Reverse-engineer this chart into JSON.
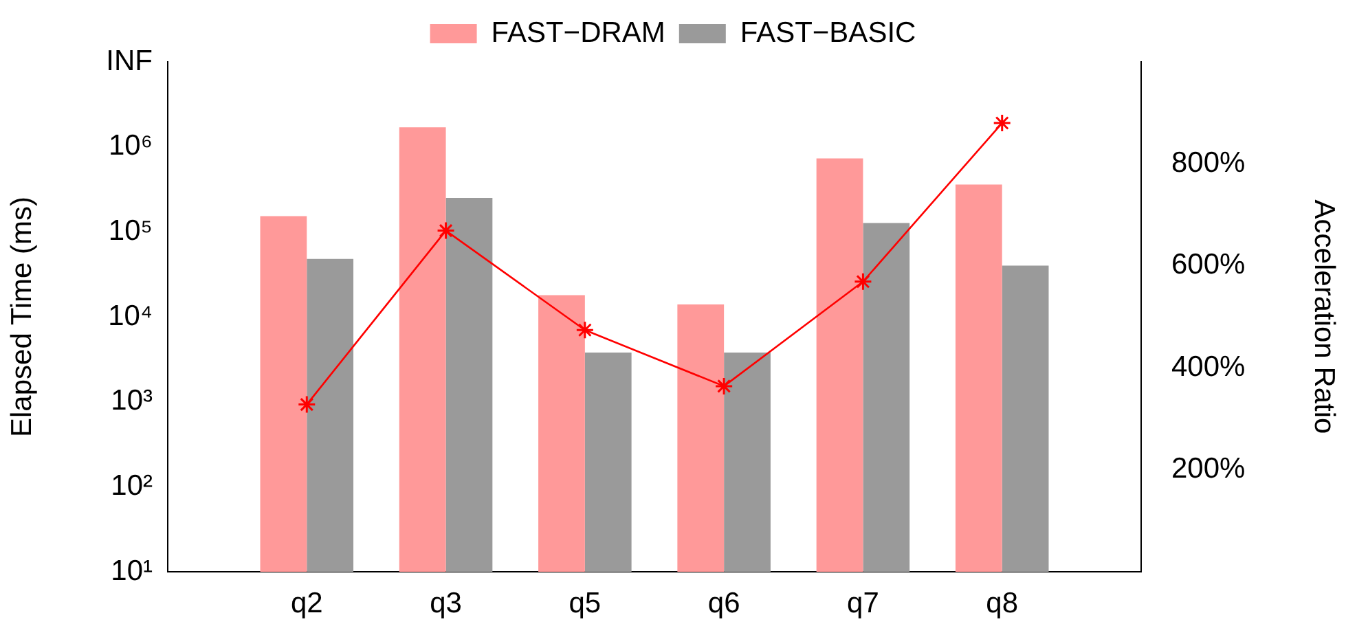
{
  "chart_data": {
    "type": "bar",
    "categories": [
      null,
      "q2",
      "q3",
      "q5",
      "q6",
      "q7",
      "q8",
      null
    ],
    "series": [
      {
        "name": "FAST−DRAM",
        "color": "#ff9999",
        "values": [
          null,
          153000,
          1700000,
          18000,
          14000,
          730000,
          360000,
          null
        ]
      },
      {
        "name": "FAST−BASIC",
        "color": "#9a9a9a",
        "values": [
          null,
          48000,
          250000,
          3800,
          3800,
          127000,
          40000,
          null
        ]
      },
      {
        "type": "line",
        "axis": "y2",
        "color": "#ff0000",
        "marker": "cross",
        "values": [
          null,
          328,
          669,
          474,
          364,
          569,
          880,
          null
        ]
      }
    ],
    "ylabel": "Elapsed Time (ms)",
    "y2label": "Acceleration Ratio",
    "log": "y",
    "ylim": [
      10,
      10000000
    ],
    "yticks": [
      {
        "value": 10,
        "label": "10¹"
      },
      {
        "value": 100,
        "label": "10²"
      },
      {
        "value": 1000,
        "label": "10³"
      },
      {
        "value": 10000,
        "label": "10⁴"
      },
      {
        "value": 100000,
        "label": "10⁵"
      },
      {
        "value": 1000000,
        "label": "10⁶"
      },
      {
        "value": 10000000,
        "label": "INF"
      }
    ],
    "y2lim": [
      0,
      1000
    ],
    "y2ticks": [
      {
        "value": 200,
        "label": "200%"
      },
      {
        "value": 400,
        "label": "400%"
      },
      {
        "value": 600,
        "label": "600%"
      },
      {
        "value": 800,
        "label": "800%"
      }
    ],
    "legend": "top",
    "grid": false
  }
}
